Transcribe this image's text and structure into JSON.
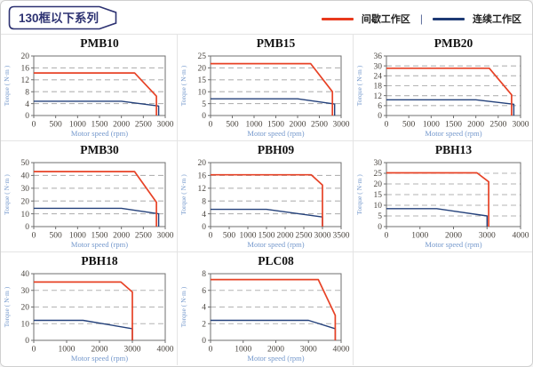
{
  "page": {
    "header": "130框以下系列"
  },
  "legend": {
    "intermittent_label": "间歇工作区",
    "continuous_label": "连续工作区",
    "separator": "|",
    "intermittent_color": "#e8391d",
    "continuous_color": "#1e3a74"
  },
  "colors": {
    "header_navy": "#2d3272",
    "line_red": "#e74226",
    "line_navy": "#24417b",
    "grid_dash": "#b3b3b3",
    "frame": "#6f6f6f",
    "tick_text": "#4a453f",
    "axis_label_blue": "#7498cc",
    "title_text": "#111111",
    "cell_border": "#e4e4e4"
  },
  "chart_data": [
    {
      "type": "line",
      "title": "PMB10",
      "xlabel": "Motor speed (rpm)",
      "ylabel": "Torque ( N·m )",
      "xlim": [
        0,
        3000
      ],
      "ylim": [
        0,
        20
      ],
      "xticks": [
        0,
        500,
        1000,
        1500,
        2000,
        2500,
        3000
      ],
      "yticks": [
        0,
        4,
        8,
        12,
        16,
        20
      ],
      "grid": "horizontal-dashed",
      "legend_position": "none",
      "series": [
        {
          "name": "间歇工作区",
          "color": "#e74226",
          "points": [
            [
              0,
              14.3
            ],
            [
              2300,
              14.3
            ],
            [
              2800,
              6.5
            ],
            [
              2800,
              0
            ]
          ]
        },
        {
          "name": "连续工作区",
          "color": "#24417b",
          "points": [
            [
              0,
              4.8
            ],
            [
              2000,
              4.8
            ],
            [
              2850,
              3.2
            ],
            [
              2850,
              0
            ]
          ]
        }
      ]
    },
    {
      "type": "line",
      "title": "PMB15",
      "xlabel": "Motor speed (rpm)",
      "ylabel": "Torque ( N·m )",
      "xlim": [
        0,
        3000
      ],
      "ylim": [
        0,
        25
      ],
      "xticks": [
        0,
        500,
        1000,
        1500,
        2000,
        2500,
        3000
      ],
      "yticks": [
        0,
        5,
        10,
        15,
        20,
        25
      ],
      "grid": "horizontal-dashed",
      "legend_position": "none",
      "series": [
        {
          "name": "间歇工作区",
          "color": "#e74226",
          "points": [
            [
              0,
              21.8
            ],
            [
              2300,
              21.8
            ],
            [
              2800,
              10
            ],
            [
              2800,
              0
            ]
          ]
        },
        {
          "name": "连续工作区",
          "color": "#24417b",
          "points": [
            [
              0,
              7
            ],
            [
              2000,
              7
            ],
            [
              2850,
              4.8
            ],
            [
              2850,
              0
            ]
          ]
        }
      ]
    },
    {
      "type": "line",
      "title": "PMB20",
      "xlabel": "Motor speed (rpm)",
      "ylabel": "Torque ( N·m )",
      "xlim": [
        0,
        3000
      ],
      "ylim": [
        0,
        36
      ],
      "xticks": [
        0,
        500,
        1000,
        1500,
        2000,
        2500,
        3000
      ],
      "yticks": [
        0,
        6,
        12,
        18,
        24,
        30,
        36
      ],
      "grid": "horizontal-dashed",
      "legend_position": "none",
      "series": [
        {
          "name": "间歇工作区",
          "color": "#e74226",
          "points": [
            [
              0,
              28.6
            ],
            [
              2300,
              28.6
            ],
            [
              2800,
              12.5
            ],
            [
              2800,
              0
            ]
          ]
        },
        {
          "name": "连续工作区",
          "color": "#24417b",
          "points": [
            [
              0,
              9.5
            ],
            [
              2000,
              9.5
            ],
            [
              2850,
              6.8
            ],
            [
              2850,
              0
            ]
          ]
        }
      ]
    },
    {
      "type": "line",
      "title": "PMB30",
      "xlabel": "Motor speed (rpm)",
      "ylabel": "Torque ( N·m )",
      "xlim": [
        0,
        3000
      ],
      "ylim": [
        0,
        50
      ],
      "xticks": [
        0,
        500,
        1000,
        1500,
        2000,
        2500,
        3000
      ],
      "yticks": [
        0,
        10,
        20,
        30,
        40,
        50
      ],
      "grid": "horizontal-dashed",
      "legend_position": "none",
      "series": [
        {
          "name": "间歇工作区",
          "color": "#e74226",
          "points": [
            [
              0,
              43
            ],
            [
              2300,
              43
            ],
            [
              2800,
              19
            ],
            [
              2800,
              0
            ]
          ]
        },
        {
          "name": "连续工作区",
          "color": "#24417b",
          "points": [
            [
              0,
              14.3
            ],
            [
              2000,
              14.3
            ],
            [
              2850,
              10
            ],
            [
              2850,
              0
            ]
          ]
        }
      ]
    },
    {
      "type": "line",
      "title": "PBH09",
      "xlabel": "Motor speed (rpm)",
      "ylabel": "Torque ( N·m )",
      "xlim": [
        0,
        3500
      ],
      "ylim": [
        0,
        20
      ],
      "xticks": [
        0,
        500,
        1000,
        1500,
        2000,
        2500,
        3000,
        3500
      ],
      "yticks": [
        0,
        4,
        8,
        12,
        16,
        20
      ],
      "grid": "horizontal-dashed",
      "legend_position": "none",
      "series": [
        {
          "name": "间歇工作区",
          "color": "#e74226",
          "points": [
            [
              0,
              16.2
            ],
            [
              2700,
              16.2
            ],
            [
              3000,
              13
            ],
            [
              3000,
              0
            ]
          ]
        },
        {
          "name": "连续工作区",
          "color": "#24417b",
          "points": [
            [
              0,
              5.4
            ],
            [
              1500,
              5.4
            ],
            [
              3000,
              3
            ],
            [
              3000,
              0
            ]
          ]
        }
      ]
    },
    {
      "type": "line",
      "title": "PBH13",
      "xlabel": "Motor speed (rpm)",
      "ylabel": "Torque ( N·m )",
      "xlim": [
        0,
        4000
      ],
      "ylim": [
        0,
        30
      ],
      "xticks": [
        0,
        1000,
        2000,
        3000,
        4000
      ],
      "yticks": [
        0,
        5,
        10,
        15,
        20,
        25,
        30
      ],
      "grid": "horizontal-dashed",
      "legend_position": "none",
      "series": [
        {
          "name": "间歇工作区",
          "color": "#e74226",
          "points": [
            [
              0,
              25.2
            ],
            [
              2700,
              25.2
            ],
            [
              3050,
              21
            ],
            [
              3050,
              0
            ]
          ]
        },
        {
          "name": "连续工作区",
          "color": "#24417b",
          "points": [
            [
              0,
              8.4
            ],
            [
              1500,
              8.4
            ],
            [
              3000,
              5
            ],
            [
              3000,
              0
            ]
          ]
        }
      ]
    },
    {
      "type": "line",
      "title": "PBH18",
      "xlabel": "Motor speed (rpm)",
      "ylabel": "Torque ( N·m )",
      "xlim": [
        0,
        4000
      ],
      "ylim": [
        0,
        40
      ],
      "xticks": [
        0,
        1000,
        2000,
        3000,
        4000
      ],
      "yticks": [
        0,
        10,
        20,
        30,
        40
      ],
      "grid": "horizontal-dashed",
      "legend_position": "none",
      "series": [
        {
          "name": "间歇工作区",
          "color": "#e74226",
          "points": [
            [
              0,
              35
            ],
            [
              2650,
              35
            ],
            [
              3000,
              29
            ],
            [
              3000,
              0
            ]
          ]
        },
        {
          "name": "连续工作区",
          "color": "#24417b",
          "points": [
            [
              0,
              12
            ],
            [
              1500,
              12
            ],
            [
              3000,
              7
            ],
            [
              3000,
              0
            ]
          ]
        }
      ]
    },
    {
      "type": "line",
      "title": "PLC08",
      "xlabel": "Motor speed (rpm)",
      "ylabel": "Torque ( N·m )",
      "xlim": [
        0,
        4000
      ],
      "ylim": [
        0,
        8
      ],
      "xticks": [
        0,
        1000,
        2000,
        3000,
        4000
      ],
      "yticks": [
        0,
        2,
        4,
        6,
        8
      ],
      "grid": "horizontal-dashed",
      "legend_position": "none",
      "series": [
        {
          "name": "间歇工作区",
          "color": "#e74226",
          "points": [
            [
              0,
              7.3
            ],
            [
              3300,
              7.3
            ],
            [
              3820,
              3
            ],
            [
              3820,
              0
            ]
          ]
        },
        {
          "name": "连续工作区",
          "color": "#24417b",
          "points": [
            [
              0,
              2.4
            ],
            [
              3000,
              2.4
            ],
            [
              3820,
              1.4
            ],
            [
              3820,
              0
            ]
          ]
        }
      ]
    }
  ]
}
